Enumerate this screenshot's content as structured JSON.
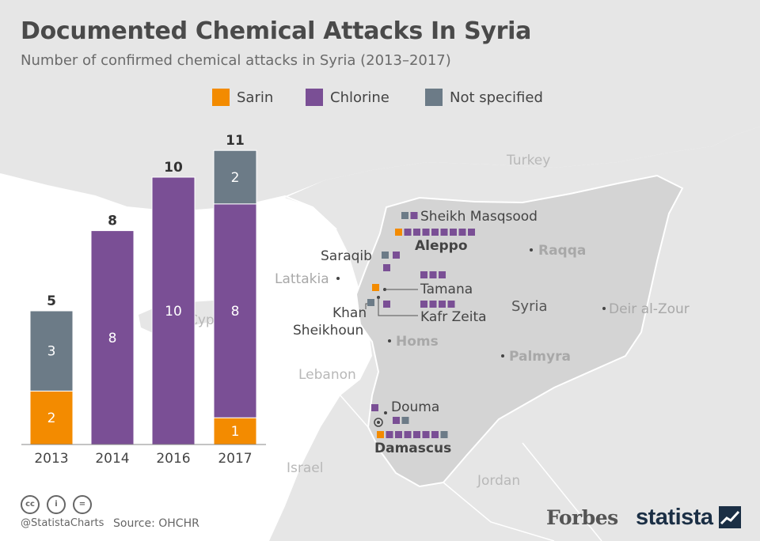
{
  "header": {
    "title": "Documented Chemical Attacks In Syria",
    "subtitle": "Number of confirmed chemical attacks in Syria (2013–2017)"
  },
  "colors": {
    "sarin": "#f38b00",
    "chlorine": "#7a4f95",
    "not_specified": "#6c7b87",
    "map_syria": "#d4d4d4",
    "map_neighbors": "#e6e6e6",
    "background": "#ffffff"
  },
  "chart_data": {
    "type": "bar",
    "stacked": true,
    "categories": [
      "2013",
      "2014",
      "2016",
      "2017"
    ],
    "series": [
      {
        "name": "Sarin",
        "values": [
          2,
          0,
          0,
          1
        ]
      },
      {
        "name": "Chlorine",
        "values": [
          0,
          8,
          10,
          8
        ]
      },
      {
        "name": "Not specified",
        "values": [
          3,
          0,
          0,
          2
        ]
      }
    ],
    "totals": [
      "5",
      "8",
      "10",
      "11"
    ],
    "ylim": [
      0,
      11
    ],
    "legend_position": "top",
    "grid": false
  },
  "legend": [
    {
      "label": "Sarin",
      "color": "#f38b00"
    },
    {
      "label": "Chlorine",
      "color": "#7a4f95"
    },
    {
      "label": "Not specified",
      "color": "#6c7b87"
    }
  ],
  "map": {
    "country_label": "Syria",
    "neighbors": {
      "turkey": "Turkey",
      "lebanon": "Lebanon",
      "israel": "Israel",
      "jordan": "Jordan",
      "cyprus": "Cyprus"
    },
    "cities": {
      "sheikh_masqsood": "Sheikh Masqsood",
      "aleppo": "Aleppo",
      "raqqa": "Raqqa",
      "saraqib": "Saraqib",
      "lattakia": "Lattakia",
      "tamana": "Tamana",
      "khan_line1": "Khan",
      "khan_line2": "Sheikhoun",
      "kafr_zeita": "Kafr Zeita",
      "deir_al_zour": "Deir al-Zour",
      "homs": "Homs",
      "palmyra": "Palmyra",
      "douma": "Douma",
      "damascus": "Damascus"
    },
    "attacks": {
      "sheikh_masqsood": [
        "Not specified",
        "Chlorine"
      ],
      "aleppo": [
        "Sarin",
        "Chlorine",
        "Chlorine",
        "Chlorine",
        "Chlorine",
        "Chlorine",
        "Chlorine",
        "Chlorine",
        "Chlorine"
      ],
      "saraqib": [
        "Not specified",
        "Chlorine",
        "Chlorine"
      ],
      "tamana": [
        "Chlorine",
        "Chlorine",
        "Chlorine"
      ],
      "khan_sheikhoun": [
        "Sarin",
        "Not specified"
      ],
      "kafr_zeita": [
        "Chlorine",
        "Chlorine",
        "Chlorine",
        "Chlorine",
        "Chlorine"
      ],
      "douma": [
        "Chlorine",
        "Chlorine",
        "Not specified"
      ],
      "damascus": [
        "Sarin",
        "Chlorine",
        "Chlorine",
        "Chlorine",
        "Chlorine",
        "Chlorine",
        "Chlorine",
        "Not specified"
      ]
    }
  },
  "footer": {
    "handle": "@StatistaCharts",
    "source": "Source: OHCHR",
    "brand_forbes": "Forbes",
    "brand_statista": "statista",
    "cc_icon": "creative-commons-icon",
    "by_icon": "attribution-icon",
    "nd_icon": "no-derivatives-icon"
  }
}
